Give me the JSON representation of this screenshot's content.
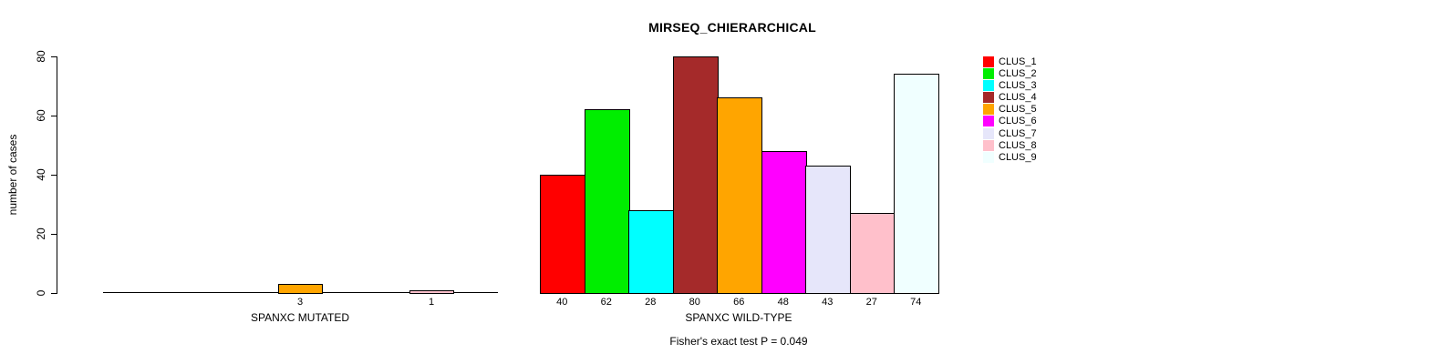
{
  "title": "MIRSEQ_CHIERARCHICAL",
  "chart_data": {
    "type": "bar",
    "title": "MIRSEQ_CHIERARCHICAL",
    "xlabel": "",
    "ylabel": "number of cases",
    "ylim": [
      0,
      80
    ],
    "yticks": [
      0,
      20,
      40,
      60,
      80
    ],
    "grid": false,
    "legend_position": "right",
    "annotation": "Fisher's exact test P = 0.049",
    "clusters": [
      "CLUS_1",
      "CLUS_2",
      "CLUS_3",
      "CLUS_4",
      "CLUS_5",
      "CLUS_6",
      "CLUS_7",
      "CLUS_8",
      "CLUS_9"
    ],
    "colors": [
      "#FF0000",
      "#00EE00",
      "#00FFFF",
      "#A52A2A",
      "#FFA500",
      "#FF00FF",
      "#E6E6FA",
      "#FFC0CB",
      "#F0FFFF"
    ],
    "bar_border_color": "#000000",
    "groups": [
      {
        "label": "SPANXC MUTATED",
        "values": [
          0,
          0,
          0,
          0,
          3,
          0,
          0,
          1,
          0
        ]
      },
      {
        "label": "SPANXC WILD-TYPE",
        "values": [
          40,
          62,
          28,
          80,
          66,
          48,
          43,
          27,
          74
        ]
      }
    ]
  }
}
